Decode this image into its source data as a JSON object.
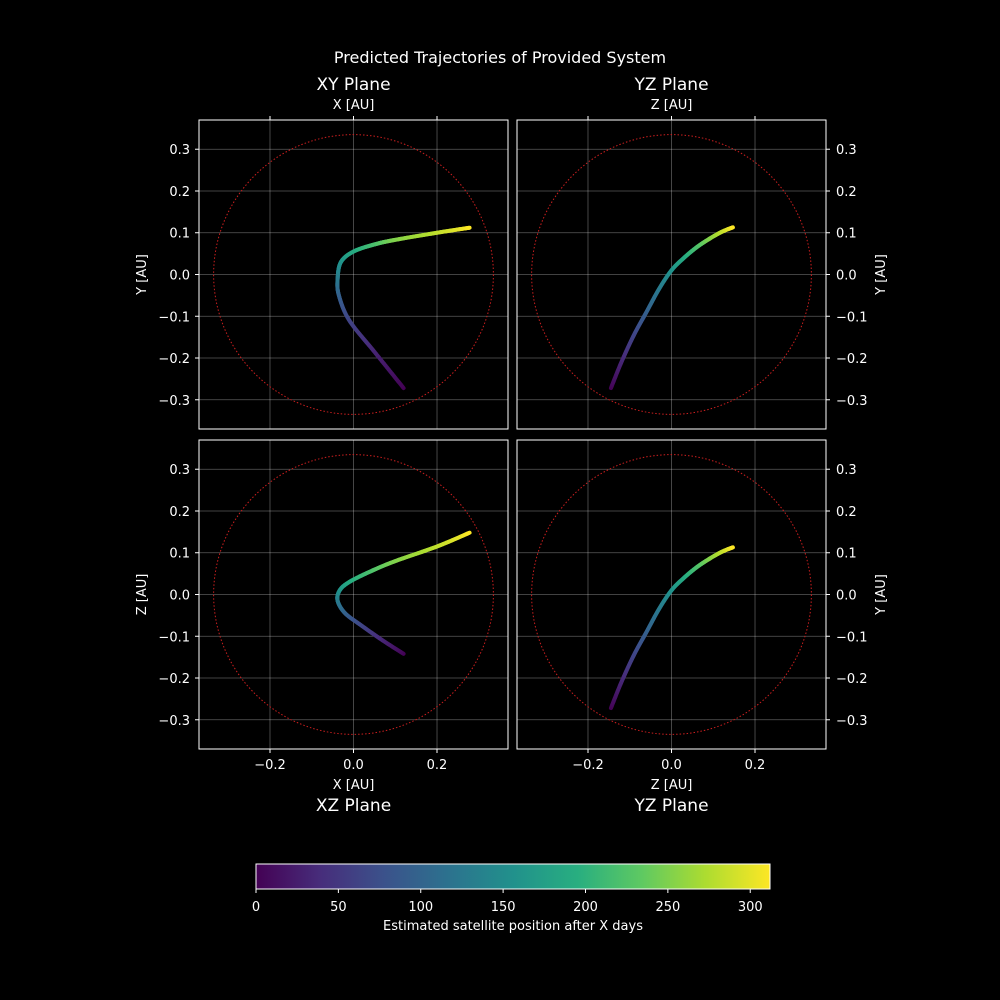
{
  "figure": {
    "title": "Predicted Trajectories of Provided System",
    "colorbar": {
      "label": "Estimated satellite position after X days",
      "min": 0,
      "max": 312,
      "ticks": [
        0,
        50,
        100,
        150,
        200,
        250,
        300
      ],
      "colormap": "viridis"
    }
  },
  "chart_data": [
    {
      "type": "line",
      "title": "XY Plane",
      "xlabel": "X [AU]",
      "ylabel": "Y [AU]",
      "xlabel_position": "top",
      "ylabel_position": "left",
      "xlim": [
        -0.37,
        0.37
      ],
      "ylim": [
        -0.37,
        0.37
      ],
      "xticks": [
        -0.2,
        0.0,
        0.2
      ],
      "yticks": [
        -0.3,
        -0.2,
        -0.1,
        0.0,
        0.1,
        0.2,
        0.3
      ],
      "show_xticklabels": false,
      "show_yticklabels": true,
      "grid": true,
      "boundary_circle_radius": 0.335,
      "trajectory": [
        [
          0.12,
          -0.272
        ],
        [
          0.05,
          -0.185
        ],
        [
          -0.01,
          -0.11
        ],
        [
          -0.035,
          -0.05
        ],
        [
          -0.038,
          -0.01
        ],
        [
          -0.03,
          0.03
        ],
        [
          0.0,
          0.055
        ],
        [
          0.05,
          0.072
        ],
        [
          0.1,
          0.083
        ],
        [
          0.2,
          0.1
        ],
        [
          0.278,
          0.112
        ]
      ]
    },
    {
      "type": "line",
      "title": "YZ Plane",
      "xlabel": "Z [AU]",
      "ylabel": "Y [AU]",
      "xlabel_position": "top",
      "ylabel_position": "right",
      "xlim": [
        -0.37,
        0.37
      ],
      "ylim": [
        -0.37,
        0.37
      ],
      "xticks": [
        -0.2,
        0.0,
        0.2
      ],
      "yticks": [
        -0.3,
        -0.2,
        -0.1,
        0.0,
        0.1,
        0.2,
        0.3
      ],
      "show_xticklabels": false,
      "show_yticklabels": true,
      "grid": true,
      "boundary_circle_radius": 0.335,
      "trajectory": [
        [
          -0.145,
          -0.272
        ],
        [
          -0.12,
          -0.21
        ],
        [
          -0.09,
          -0.145
        ],
        [
          -0.06,
          -0.09
        ],
        [
          -0.03,
          -0.035
        ],
        [
          0.0,
          0.01
        ],
        [
          0.03,
          0.04
        ],
        [
          0.06,
          0.065
        ],
        [
          0.09,
          0.085
        ],
        [
          0.12,
          0.102
        ],
        [
          0.147,
          0.113
        ]
      ]
    },
    {
      "type": "line",
      "title": "XZ Plane",
      "xlabel": "X [AU]",
      "ylabel": "Z [AU]",
      "xlabel_position": "bottom",
      "ylabel_position": "left",
      "xlim": [
        -0.37,
        0.37
      ],
      "ylim": [
        -0.37,
        0.37
      ],
      "xticks": [
        -0.2,
        0.0,
        0.2
      ],
      "yticks": [
        -0.3,
        -0.2,
        -0.1,
        0.0,
        0.1,
        0.2,
        0.3
      ],
      "show_xticklabels": true,
      "show_yticklabels": true,
      "grid": true,
      "boundary_circle_radius": 0.335,
      "trajectory": [
        [
          0.12,
          -0.142
        ],
        [
          0.07,
          -0.11
        ],
        [
          0.02,
          -0.075
        ],
        [
          -0.02,
          -0.045
        ],
        [
          -0.038,
          -0.015
        ],
        [
          -0.033,
          0.01
        ],
        [
          -0.01,
          0.03
        ],
        [
          0.04,
          0.055
        ],
        [
          0.1,
          0.08
        ],
        [
          0.2,
          0.115
        ],
        [
          0.278,
          0.148
        ]
      ]
    },
    {
      "type": "line",
      "title": "YZ Plane",
      "xlabel": "Z [AU]",
      "ylabel": "Y [AU]",
      "xlabel_position": "bottom",
      "ylabel_position": "right",
      "xlim": [
        -0.37,
        0.37
      ],
      "ylim": [
        -0.37,
        0.37
      ],
      "xticks": [
        -0.2,
        0.0,
        0.2
      ],
      "yticks": [
        -0.3,
        -0.2,
        -0.1,
        0.0,
        0.1,
        0.2,
        0.3
      ],
      "show_xticklabels": true,
      "show_yticklabels": true,
      "grid": true,
      "boundary_circle_radius": 0.335,
      "trajectory": [
        [
          -0.145,
          -0.272
        ],
        [
          -0.12,
          -0.21
        ],
        [
          -0.09,
          -0.145
        ],
        [
          -0.06,
          -0.09
        ],
        [
          -0.03,
          -0.035
        ],
        [
          0.0,
          0.01
        ],
        [
          0.03,
          0.04
        ],
        [
          0.06,
          0.065
        ],
        [
          0.09,
          0.085
        ],
        [
          0.12,
          0.102
        ],
        [
          0.147,
          0.113
        ]
      ]
    }
  ]
}
